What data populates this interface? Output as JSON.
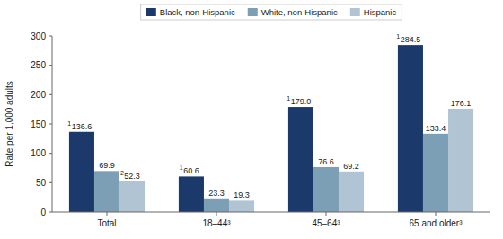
{
  "chart_data": {
    "type": "bar",
    "categories": [
      "Total",
      "18–44³",
      "45–64³",
      "65 and older³"
    ],
    "series": [
      {
        "name": "Black, non-Hispanic",
        "color": "#1b3a6b",
        "values": [
          136.6,
          60.6,
          179.0,
          284.5
        ],
        "value_labels": [
          "136.6",
          "60.6",
          "179.0",
          "284.5"
        ],
        "superscripts": [
          "1",
          "1",
          "1",
          "1"
        ]
      },
      {
        "name": "White, non-Hispanic",
        "color": "#7d9fb5",
        "values": [
          69.9,
          23.3,
          76.6,
          133.4
        ],
        "value_labels": [
          "69.9",
          "23.3",
          "76.6",
          "133.4"
        ],
        "superscripts": [
          null,
          null,
          null,
          null
        ]
      },
      {
        "name": "Hispanic",
        "color": "#b0c4d4",
        "values": [
          52.3,
          19.3,
          69.2,
          176.1
        ],
        "value_labels": [
          "52.3",
          "19.3",
          "69.2",
          "176.1"
        ],
        "superscripts": [
          "2",
          null,
          null,
          null
        ]
      }
    ],
    "ylabel": "Rate per 1,000 adults",
    "ylim": [
      0,
      300
    ],
    "yticks": [
      0,
      50,
      100,
      150,
      200,
      250,
      300
    ],
    "grid": false,
    "legend": "top",
    "data_labels": true
  }
}
